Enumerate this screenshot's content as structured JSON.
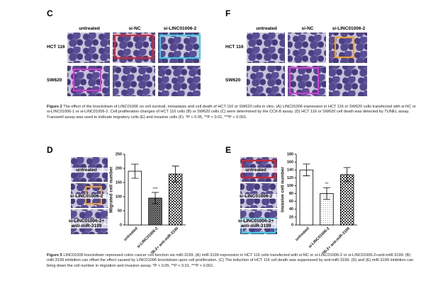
{
  "figure2": {
    "panels": [
      {
        "label": "C",
        "columns": [
          "untreated",
          "si-NC",
          "si-LINC01006-2"
        ],
        "rows": [
          "HCT 116",
          "SW620"
        ]
      },
      {
        "label": "F",
        "columns": [
          "untreated",
          "si-NC",
          "si-LINC01006-2"
        ],
        "rows": [
          "HCT 116",
          "SW620"
        ]
      }
    ],
    "caption": {
      "title": "Figure 2",
      "text": "The effect of the knockdown of LINC01006 on cell survival, metastasis and cell death of HCT 116 or SW620 cells in vitro. (A) LINC01006 expression in HCT 116 or SW620 cells transfected with si-NC or si-LINC01006-1 or si-LINC01006-2. Cell proliferation changes of HCT 116 cells (B) or SW620 cells (C) were determined by the CCK-8 assay. (D) HCT 116 or SW620 cell death was detected by TUNEL assay. Transwell assay was used to indicate migratory cells (E) and invasive cells (F). *P < 0.05, **P < 0.01, ***P < 0.001."
    }
  },
  "figure5": {
    "panels": [
      {
        "label": "D",
        "rows": [
          "untreated",
          "si-LINC01006-2",
          "si-LINC01006-2+ anti-miR-3199"
        ]
      },
      {
        "label": "E",
        "rows": [
          "untreated",
          "si-LINC01006-2",
          "si-LINC01006-2+ anti-miR-3199"
        ]
      }
    ],
    "caption": {
      "title": "Figure 5",
      "text": "LINC01006 knockdown repressed colon cancer cell function via miR-3199. (A) miR-3199 expression in HCT 116 cells transfected with si-NC or si-LINC01006-2 or si-LINC01006-2+anti-miR-3199. (B) miR-3199 inhibition can offset the effect caused by LINC01006 knockdown upon cell proliferation. (C) The induction of HCT 116 cell death was suppressed by anti-miR-3199. (D) and (E) miR-3199 inhibition can bring down the cell number in migration and invasion assay. *P < 0.05, **P < 0.01, ***P < 0.001."
    }
  },
  "chart_data": [
    {
      "type": "bar",
      "y_label": "Migrated cell number",
      "categories": [
        "untreated",
        "si-LINC01006-2",
        "si-LINC01006-2+ anti-miR-3199"
      ],
      "values": [
        190,
        95,
        180
      ],
      "errors": [
        25,
        20,
        28
      ],
      "patterns": [
        "none",
        "crosshatch",
        "checker"
      ],
      "annotations": [
        {
          "index": 1,
          "text": "***"
        }
      ],
      "ylim": [
        0,
        250
      ],
      "yticks": [
        0,
        50,
        100,
        150,
        200,
        250
      ]
    },
    {
      "type": "bar",
      "y_label": "Invasive cell number",
      "categories": [
        "untreated",
        "si-LINC01006-2",
        "si-LINC01006-2+ anti-miR-3199"
      ],
      "values": [
        140,
        80,
        128
      ],
      "errors": [
        15,
        15,
        18
      ],
      "patterns": [
        "none",
        "dots",
        "checker"
      ],
      "annotations": [
        {
          "index": 1,
          "text": "**"
        }
      ],
      "ylim": [
        0,
        180
      ],
      "yticks": [
        0,
        20,
        40,
        60,
        80,
        100,
        120,
        140,
        160,
        180
      ]
    }
  ]
}
